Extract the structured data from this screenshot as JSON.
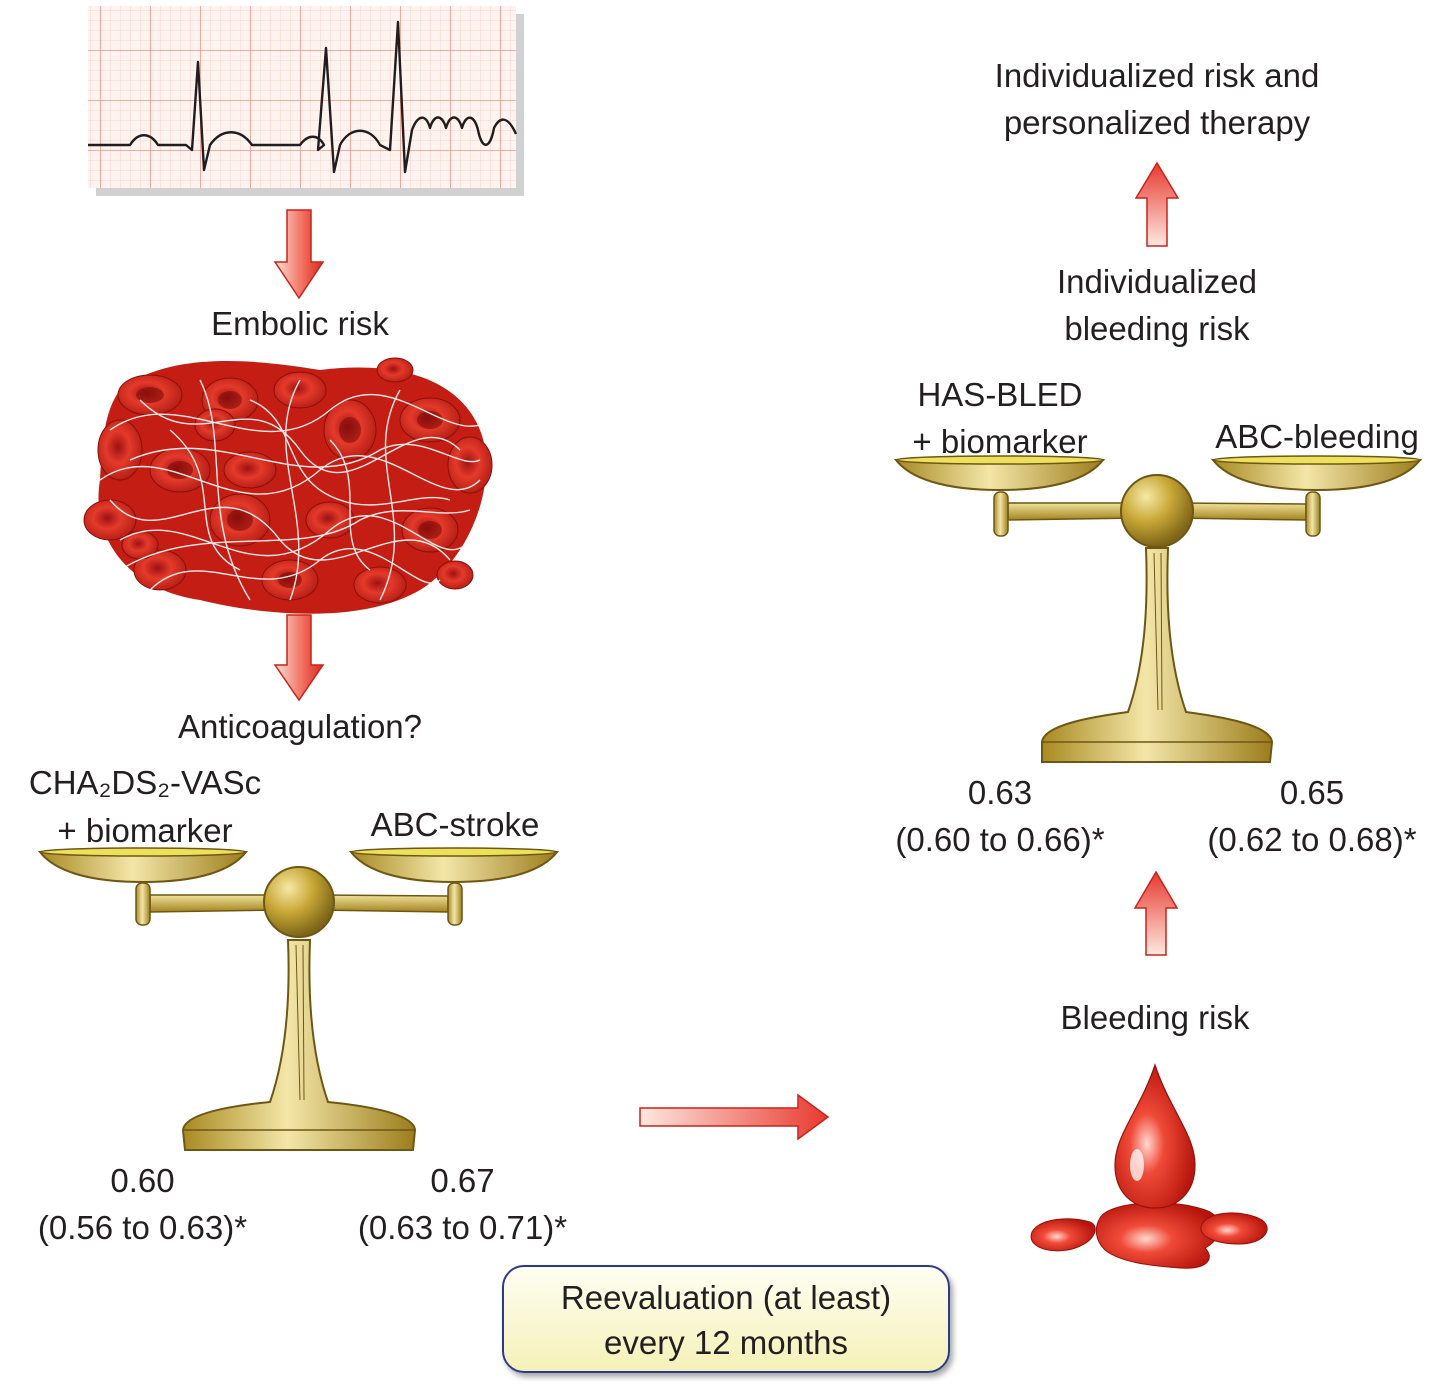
{
  "stroke_path": {
    "embolic_label": "Embolic risk",
    "anticoagulation_label": "Anticoagulation?",
    "left_scale": {
      "left_pan_label_line1": "CHA₂DS₂-VASc",
      "left_pan_label_line2": "+ biomarker",
      "right_pan_label": "ABC-stroke",
      "left_value": "0.60",
      "left_ci": "(0.56 to 0.63)*",
      "right_value": "0.67",
      "right_ci": "(0.63 to 0.71)*"
    }
  },
  "bleeding_path": {
    "bleeding_label": "Bleeding risk",
    "right_scale": {
      "left_pan_label_line1": "HAS-BLED",
      "left_pan_label_line2": "+ biomarker",
      "right_pan_label": "ABC-bleeding",
      "left_value": "0.63",
      "left_ci": "(0.60 to 0.66)*",
      "right_value": "0.65",
      "right_ci": "(0.62 to 0.68)*"
    },
    "individualized_bleeding_line1": "Individualized",
    "individualized_bleeding_line2": "bleeding risk",
    "outcome_line1": "Individualized risk and",
    "outcome_line2": "personalized therapy"
  },
  "reevaluation": {
    "line1": "Reevaluation (at least)",
    "line2": "every 12 months"
  },
  "colors": {
    "arrow_red": "#e8392f",
    "arrow_light": "#fde4dc",
    "scale_gold": "#c9a93a",
    "scale_outline": "#6e5714",
    "box_border": "#2b3a8a",
    "ecg_grid": "#f4a9a0"
  }
}
